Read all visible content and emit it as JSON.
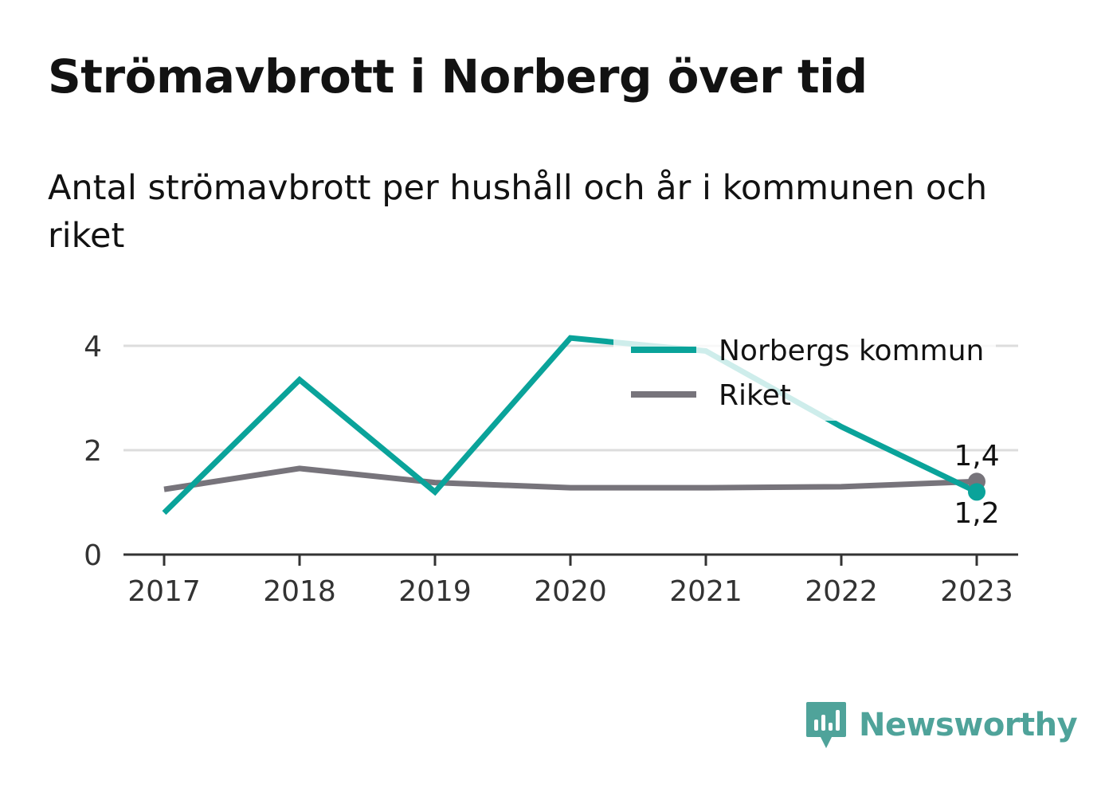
{
  "title": "Strömavbrott i Norberg över tid",
  "subtitle": "Antal strömavbrott per hushåll och år i kommunen och riket",
  "brand": {
    "name": "Newsworthy",
    "color": "#4fa39a"
  },
  "chart_data": {
    "type": "line",
    "title": "",
    "xlabel": "",
    "ylabel": "",
    "categories": [
      "2017",
      "2018",
      "2019",
      "2020",
      "2021",
      "2022",
      "2023"
    ],
    "ylim": [
      0,
      4.6
    ],
    "yticks": [
      0,
      2,
      4
    ],
    "grid": true,
    "legend_position": "top-right",
    "series": [
      {
        "name": "Norbergs kommun",
        "color": "#0aa39a",
        "values": [
          0.8,
          3.35,
          1.2,
          4.15,
          3.9,
          2.45,
          1.2
        ],
        "end_label": "1,2"
      },
      {
        "name": "Riket",
        "color": "#77747b",
        "values": [
          1.25,
          1.65,
          1.38,
          1.28,
          1.28,
          1.3,
          1.4
        ],
        "end_label": "1,4"
      }
    ]
  }
}
